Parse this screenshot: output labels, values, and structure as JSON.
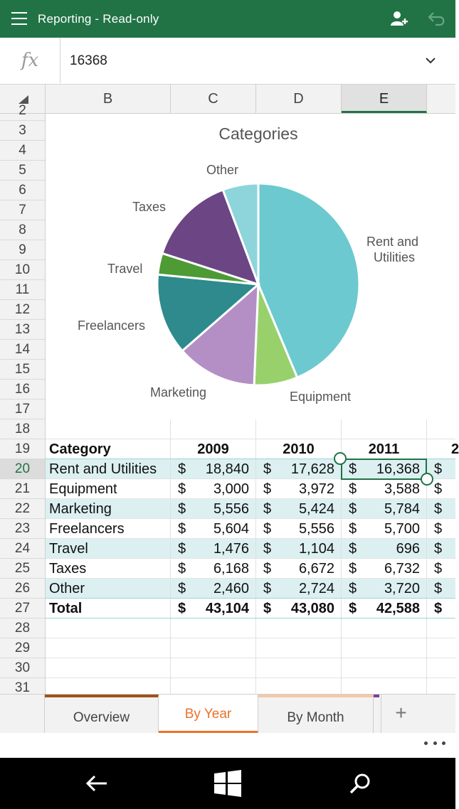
{
  "app": {
    "title": "Reporting - Read-only"
  },
  "formula_bar": {
    "fx_label": "fx",
    "value": "16368"
  },
  "columns": [
    "B",
    "C",
    "D",
    "E"
  ],
  "rows": [
    "2",
    "3",
    "4",
    "5",
    "6",
    "7",
    "8",
    "9",
    "10",
    "11",
    "12",
    "13",
    "14",
    "15",
    "16",
    "17",
    "18",
    "19",
    "20",
    "21",
    "22",
    "23",
    "24",
    "25",
    "26",
    "27",
    "28",
    "29",
    "30",
    "31"
  ],
  "table": {
    "header": {
      "category": "Category",
      "y2009": "2009",
      "y2010": "2010",
      "y2011": "2011",
      "y2012_partial": "2"
    },
    "currency": "$",
    "rows": [
      {
        "category": "Rent and Utilities",
        "v2009": "18,840",
        "v2010": "17,628",
        "v2011": "16,368"
      },
      {
        "category": "Equipment",
        "v2009": "3,000",
        "v2010": "3,972",
        "v2011": "3,588"
      },
      {
        "category": "Marketing",
        "v2009": "5,556",
        "v2010": "5,424",
        "v2011": "5,784"
      },
      {
        "category": "Freelancers",
        "v2009": "5,604",
        "v2010": "5,556",
        "v2011": "5,700"
      },
      {
        "category": "Travel",
        "v2009": "1,476",
        "v2010": "1,104",
        "v2011": "696"
      },
      {
        "category": "Taxes",
        "v2009": "6,168",
        "v2010": "6,672",
        "v2011": "6,732"
      },
      {
        "category": "Other",
        "v2009": "2,460",
        "v2010": "2,724",
        "v2011": "3,720"
      }
    ],
    "total": {
      "category": "Total",
      "v2009": "43,104",
      "v2010": "43,080",
      "v2011": "42,588"
    }
  },
  "chart_data": {
    "type": "pie",
    "title": "Categories",
    "categories": [
      "Rent and Utilities",
      "Equipment",
      "Marketing",
      "Freelancers",
      "Travel",
      "Taxes",
      "Other"
    ],
    "values": [
      18840,
      3000,
      5556,
      5604,
      1476,
      6168,
      2460
    ],
    "colors": [
      "#6cc9cf",
      "#98d16c",
      "#b48fc6",
      "#2e8a8c",
      "#4e9a35",
      "#6c4585",
      "#8ed4db"
    ],
    "legend": "none"
  },
  "sheets": [
    {
      "label": "Overview",
      "active": false
    },
    {
      "label": "By Year",
      "active": true
    },
    {
      "label": "By Month",
      "active": false
    }
  ],
  "colors": {
    "accent": "#217346",
    "active_tab": "#e8732a",
    "band": "#dcf0f2"
  }
}
